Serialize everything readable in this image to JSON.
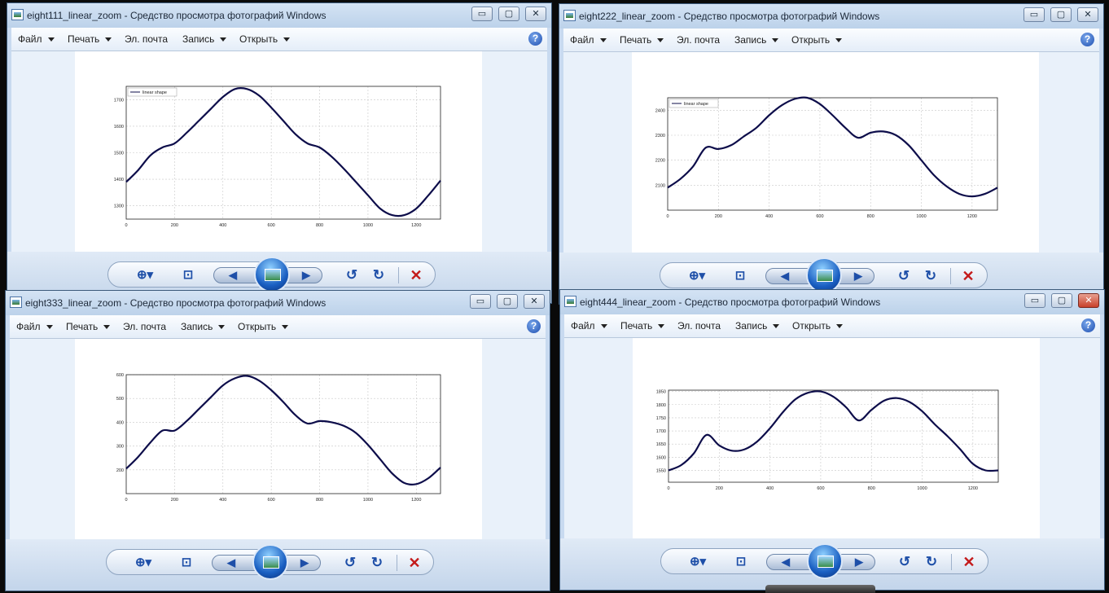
{
  "menu": {
    "file": "Файл",
    "print": "Печать",
    "email": "Эл. почта",
    "burn": "Запись",
    "open": "Открыть",
    "help": "?"
  },
  "captions": {
    "minimize": "▭",
    "maximize": "▢",
    "close": "✕"
  },
  "windows": [
    {
      "title": "eight111_linear_zoom - Средство просмотра фотографий Windows"
    },
    {
      "title": "eight222_linear_zoom - Средство просмотра фотографий Windows"
    },
    {
      "title": "eight333_linear_zoom - Средство просмотра фотографий Windows"
    },
    {
      "title": "eight444_linear_zoom - Средство просмотра фотографий Windows"
    }
  ],
  "toolbar": {
    "zoom_icon": "zoom-icon",
    "fit_icon": "fit-window-icon",
    "prev_icon": "previous-icon",
    "slideshow_icon": "slideshow-icon",
    "next_icon": "next-icon",
    "rotate_ccw_icon": "rotate-ccw-icon",
    "rotate_cw_icon": "rotate-cw-icon",
    "delete_icon": "delete-icon"
  },
  "chart_data": [
    {
      "type": "line",
      "legend": "linear shape",
      "legend_position": "top-left",
      "xlim": [
        0,
        1300
      ],
      "ylim": [
        1250,
        1750
      ],
      "xticks": [
        "0",
        "200",
        "400",
        "600",
        "800",
        "1000",
        "1200"
      ],
      "yticks": [
        {
          "v": 1300,
          "t": "1300"
        },
        {
          "v": 1400,
          "t": "1400"
        },
        {
          "v": 1500,
          "t": "1500"
        },
        {
          "v": 1600,
          "t": "1600"
        },
        {
          "v": 1700,
          "t": "1700"
        }
      ],
      "grid": true,
      "color": "#0d0d4a",
      "x": [
        0,
        50,
        100,
        150,
        200,
        250,
        300,
        350,
        400,
        450,
        500,
        550,
        600,
        650,
        700,
        750,
        800,
        850,
        900,
        950,
        1000,
        1050,
        1100,
        1150,
        1200,
        1250,
        1300
      ],
      "y": [
        1390,
        1435,
        1490,
        1520,
        1535,
        1575,
        1620,
        1665,
        1710,
        1740,
        1740,
        1715,
        1670,
        1620,
        1570,
        1535,
        1520,
        1485,
        1440,
        1390,
        1340,
        1290,
        1265,
        1265,
        1290,
        1340,
        1395
      ]
    },
    {
      "type": "line",
      "legend": "linear shape",
      "legend_position": "top-left",
      "xlim": [
        0,
        1300
      ],
      "ylim": [
        2000,
        2450
      ],
      "xticks": [
        "0",
        "200",
        "400",
        "600",
        "800",
        "1000",
        "1200"
      ],
      "yticks": [
        {
          "v": 2100,
          "t": "2100"
        },
        {
          "v": 2200,
          "t": "2200"
        },
        {
          "v": 2300,
          "t": "2300"
        },
        {
          "v": 2400,
          "t": "2400"
        }
      ],
      "grid": true,
      "color": "#0d0d4a",
      "x": [
        0,
        50,
        100,
        150,
        200,
        250,
        300,
        350,
        400,
        450,
        500,
        550,
        600,
        650,
        700,
        750,
        800,
        850,
        900,
        950,
        1000,
        1050,
        1100,
        1150,
        1200,
        1250,
        1300
      ],
      "y": [
        2090,
        2125,
        2175,
        2250,
        2245,
        2260,
        2295,
        2330,
        2380,
        2420,
        2445,
        2450,
        2425,
        2380,
        2330,
        2290,
        2310,
        2315,
        2300,
        2260,
        2200,
        2140,
        2095,
        2065,
        2055,
        2065,
        2090
      ]
    },
    {
      "type": "line",
      "xlim": [
        0,
        1300
      ],
      "ylim": [
        100,
        600
      ],
      "xticks": [
        "0",
        "200",
        "400",
        "600",
        "800",
        "1000",
        "1200"
      ],
      "yticks": [
        {
          "v": 200,
          "t": "200"
        },
        {
          "v": 300,
          "t": "300"
        },
        {
          "v": 400,
          "t": "400"
        },
        {
          "v": 500,
          "t": "500"
        },
        {
          "v": 600,
          "t": "600"
        }
      ],
      "grid": true,
      "color": "#0d0d4a",
      "x": [
        0,
        50,
        100,
        150,
        200,
        250,
        300,
        350,
        400,
        450,
        500,
        550,
        600,
        650,
        700,
        750,
        800,
        850,
        900,
        950,
        1000,
        1050,
        1100,
        1150,
        1200,
        1250,
        1300
      ],
      "y": [
        205,
        255,
        315,
        365,
        365,
        405,
        455,
        505,
        555,
        585,
        595,
        575,
        535,
        485,
        430,
        395,
        405,
        400,
        385,
        355,
        305,
        245,
        185,
        145,
        140,
        165,
        210
      ]
    },
    {
      "type": "line",
      "xlim": [
        0,
        1300
      ],
      "ylim": [
        1505,
        1855
      ],
      "xticks": [
        "0",
        "200",
        "400",
        "600",
        "800",
        "1000",
        "1200"
      ],
      "yticks": [
        {
          "v": 1550,
          "t": "1550"
        },
        {
          "v": 1600,
          "t": "1600"
        },
        {
          "v": 1650,
          "t": "1650"
        },
        {
          "v": 1700,
          "t": "1700"
        },
        {
          "v": 1750,
          "t": "1750"
        },
        {
          "v": 1800,
          "t": "1800"
        },
        {
          "v": 1850,
          "t": "1850"
        }
      ],
      "grid": true,
      "color": "#0d0d4a",
      "x": [
        0,
        50,
        100,
        150,
        200,
        250,
        300,
        350,
        400,
        450,
        500,
        550,
        600,
        650,
        700,
        750,
        800,
        850,
        900,
        950,
        1000,
        1050,
        1100,
        1150,
        1200,
        1250,
        1300
      ],
      "y": [
        1550,
        1570,
        1615,
        1685,
        1645,
        1625,
        1630,
        1660,
        1710,
        1770,
        1820,
        1845,
        1850,
        1830,
        1790,
        1740,
        1780,
        1815,
        1825,
        1810,
        1775,
        1725,
        1680,
        1630,
        1575,
        1550,
        1550
      ]
    }
  ]
}
